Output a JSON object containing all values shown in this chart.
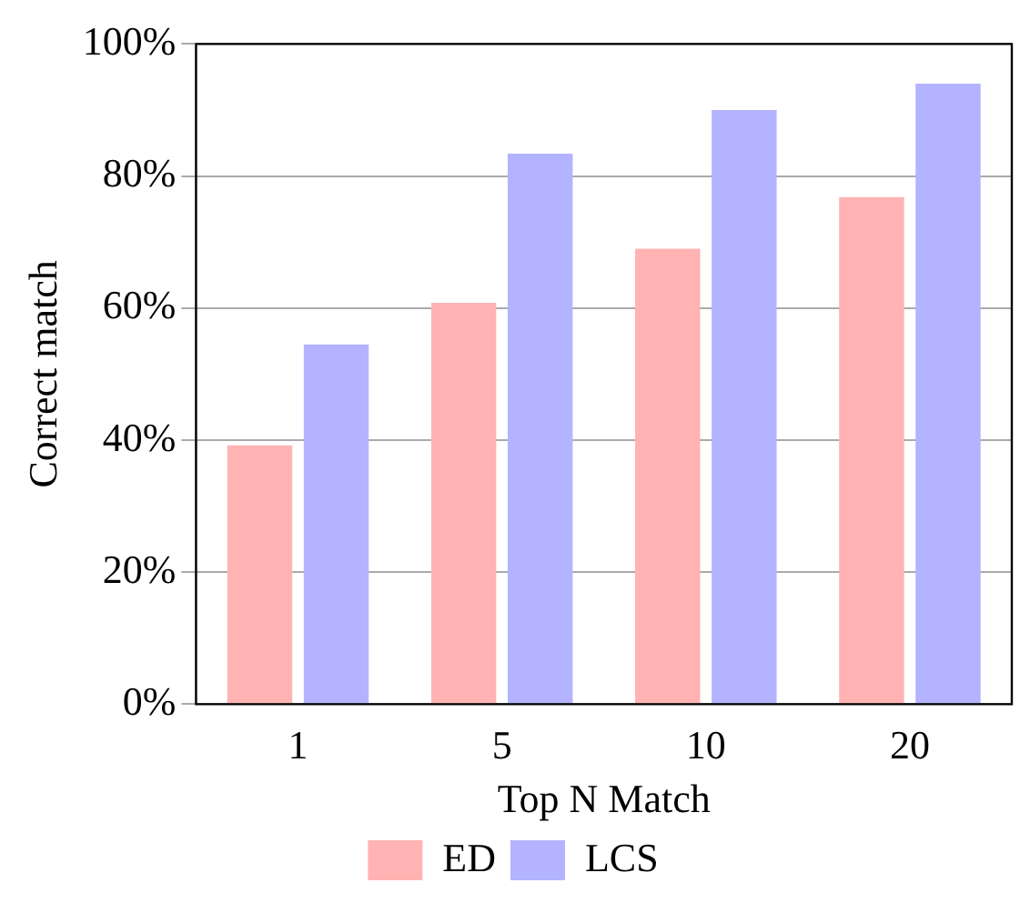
{
  "chart_data": {
    "type": "bar",
    "xlabel": "Top N Match",
    "ylabel": "Correct match",
    "categories": [
      "1",
      "5",
      "10",
      "20"
    ],
    "series": [
      {
        "name": "ED",
        "color": "#ffb3b3",
        "values": [
          39.2,
          60.8,
          69,
          76.8
        ]
      },
      {
        "name": "LCS",
        "color": "#b3b3ff",
        "values": [
          54.5,
          83.4,
          90,
          94
        ]
      }
    ],
    "ylim": [
      0,
      100
    ],
    "yticks": [
      {
        "value": 0,
        "label": "0%"
      },
      {
        "value": 20,
        "label": "20%"
      },
      {
        "value": 40,
        "label": "40%"
      },
      {
        "value": 60,
        "label": "60%"
      },
      {
        "value": 80,
        "label": "80%"
      },
      {
        "value": 100,
        "label": "100%"
      }
    ],
    "grid": "y",
    "legend": "bottom"
  }
}
